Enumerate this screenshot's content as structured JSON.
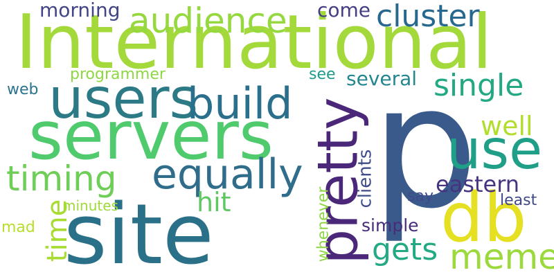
{
  "words": [
    {
      "text": "p",
      "color": "#3b5a8c"
    },
    {
      "text": "International",
      "color": "#a3d93b"
    },
    {
      "text": "site",
      "color": "#2a7088"
    },
    {
      "text": "servers",
      "color": "#4fcb6e"
    },
    {
      "text": "users",
      "color": "#2d7a87"
    },
    {
      "text": "pretty",
      "color": "#4b2779"
    },
    {
      "text": "db",
      "color": "#e6e022"
    },
    {
      "text": "build",
      "color": "#2a6f8c"
    },
    {
      "text": "use",
      "color": "#1f9f88"
    },
    {
      "text": "equally",
      "color": "#2f6d8b"
    },
    {
      "text": "audience",
      "color": "#96d83f"
    },
    {
      "text": "timing",
      "color": "#6ece58"
    },
    {
      "text": "cluster",
      "color": "#27688e"
    },
    {
      "text": "meme",
      "color": "#9bd93c"
    },
    {
      "text": "single",
      "color": "#23a884"
    },
    {
      "text": "gets",
      "color": "#23a983"
    },
    {
      "text": "eastern",
      "color": "#463480"
    },
    {
      "text": "time",
      "color": "#a9dc33"
    },
    {
      "text": "well",
      "color": "#b3dd2c"
    },
    {
      "text": "hit",
      "color": "#5ec962"
    },
    {
      "text": "clients",
      "color": "#3f4d8a"
    },
    {
      "text": "several",
      "color": "#24868e"
    },
    {
      "text": "whenever",
      "color": "#8ed645"
    },
    {
      "text": "morning",
      "color": "#414487"
    },
    {
      "text": "simple",
      "color": "#472c7a"
    },
    {
      "text": "come",
      "color": "#433e85"
    },
    {
      "text": "programmer",
      "color": "#8fd744"
    },
    {
      "text": "minutes",
      "color": "#a0da39"
    },
    {
      "text": "see",
      "color": "#1f9a8a"
    },
    {
      "text": "web",
      "color": "#2c738e"
    },
    {
      "text": "say",
      "color": "#3e4a89"
    },
    {
      "text": "least",
      "color": "#3f4889"
    },
    {
      "text": "mad",
      "color": "#b6de2b"
    }
  ]
}
